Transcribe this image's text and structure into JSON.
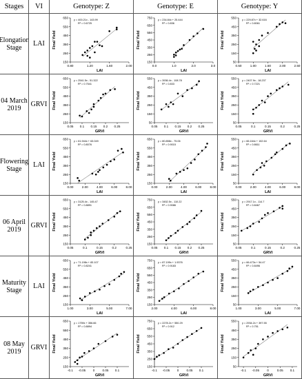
{
  "table": {
    "header": [
      "Stages",
      "VI",
      "Genotype: Z",
      "Genotype: E",
      "Genotype: Y"
    ],
    "rows": [
      [
        "Elongation Stage",
        "LAI"
      ],
      [
        "04 March 2019",
        "GRVI"
      ],
      [
        "Flowering Stage",
        "LAI"
      ],
      [
        "06 April 2019",
        "GRVI"
      ],
      [
        "Maturity Stage",
        "LAI"
      ],
      [
        "08 May 2019",
        "GRVI"
      ]
    ]
  },
  "chart_data": [
    {
      "type": "scatter",
      "equation": "y = 400.21x - 143.99",
      "r_squared": "R² = 0.6725",
      "x_label": "LAI",
      "y_label": "Final Yield",
      "color": "#000000",
      "trendline_color": "#808080",
      "xlim": [
        0.8,
        2.0
      ],
      "xticks": [
        {
          "value": 0.8,
          "label": "0.80"
        },
        {
          "value": 1.2,
          "label": "1.20"
        },
        {
          "value": 1.6,
          "label": "1.60"
        },
        {
          "value": 2,
          "label": "2.00"
        }
      ],
      "ylim": [
        150,
        650
      ],
      "yticks": [
        150,
        250,
        350,
        450,
        550,
        650
      ],
      "x": [
        1.05,
        1.1,
        1.15,
        1.15,
        1.2,
        1.25,
        1.3,
        1.35,
        1.4,
        1.3,
        1.6,
        1.75,
        1.75,
        1.2,
        1.45
      ],
      "values": [
        230,
        260,
        280,
        220,
        310,
        330,
        380,
        380,
        340,
        260,
        500,
        520,
        540,
        200,
        330
      ]
    },
    {
      "type": "scatter",
      "equation": "y = 234.84x + 25.444",
      "r_squared": "R² = 0.836",
      "x_label": "LAI",
      "y_label": "Final Yield",
      "color": "#000000",
      "trendline_color": "#808080",
      "xlim": [
        0,
        3
      ],
      "xticks": [
        {
          "value": 0,
          "label": "0.0"
        },
        {
          "value": 1,
          "label": "1.0"
        },
        {
          "value": 2,
          "label": "2.0"
        },
        {
          "value": 3,
          "label": "3.0"
        }
      ],
      "ylim": [
        150,
        750
      ],
      "yticks": [
        150,
        250,
        350,
        450,
        550,
        650,
        750
      ],
      "x": [
        1,
        1.1,
        1.2,
        1.0,
        1.3,
        1.5,
        1.8,
        2.0,
        2.2,
        2.5,
        1.1,
        1.4
      ],
      "values": [
        250,
        280,
        300,
        220,
        320,
        380,
        450,
        500,
        540,
        600,
        240,
        330
      ]
    },
    {
      "type": "scatter",
      "equation": "y = 229.87x + 32.616",
      "r_squared": "R² = 0.8061",
      "x_label": "LAI",
      "y_label": "Final Yield",
      "color": "#000000",
      "trendline_color": "#808080",
      "xlim": [
        0.5,
        2.5
      ],
      "xticks": [
        {
          "value": 0.5,
          "label": "0.50"
        },
        {
          "value": 1,
          "label": "1.00"
        },
        {
          "value": 1.5,
          "label": "1.50"
        },
        {
          "value": 2,
          "label": "2.00"
        },
        {
          "value": 2.5,
          "label": "2.50"
        }
      ],
      "ylim": [
        50,
        550
      ],
      "yticks": [
        50,
        150,
        250,
        350,
        450,
        550
      ],
      "x": [
        1.0,
        1.05,
        1.1,
        1.0,
        1.2,
        1.3,
        1.5,
        1.1,
        1.8,
        1.9,
        2.0,
        2.1,
        1.2
      ],
      "values": [
        150,
        200,
        250,
        280,
        300,
        350,
        380,
        180,
        450,
        480,
        500,
        490,
        230
      ]
    },
    {
      "type": "scatter",
      "equation": "y = 2541.5x - 51.322",
      "r_squared": "R² = 0.7541",
      "x_label": "GRVI",
      "y_label": "Final Yield",
      "color": "#000000",
      "trendline_color": "#808080",
      "xlim": [
        0.05,
        0.3
      ],
      "xticks": [
        0.05,
        0.1,
        0.15,
        0.2,
        0.25
      ],
      "ylim": [
        150,
        650
      ],
      "yticks": [
        150,
        250,
        350,
        450,
        550,
        650
      ],
      "x": [
        0.09,
        0.1,
        0.12,
        0.14,
        0.15,
        0.15,
        0.17,
        0.18,
        0.19,
        0.2,
        0.22,
        0.24,
        0.13
      ],
      "values": [
        230,
        220,
        280,
        300,
        360,
        330,
        400,
        430,
        470,
        480,
        520,
        530,
        260
      ]
    },
    {
      "type": "scatter",
      "equation": "y = 3936.4x - 108.78",
      "r_squared": "R² = 0.833",
      "x_label": "GRVI",
      "y_label": "Final Yield",
      "color": "#000000",
      "trendline_color": "#808080",
      "xlim": [
        0.05,
        0.3
      ],
      "xticks": [
        0.05,
        0.1,
        0.15,
        0.2,
        0.25
      ],
      "ylim": [
        50,
        550
      ],
      "yticks": [
        50,
        150,
        250,
        350,
        450,
        550
      ],
      "x": [
        0.08,
        0.1,
        0.12,
        0.13,
        0.15,
        0.17,
        0.19,
        0.21,
        0.23,
        0.24,
        0.11
      ],
      "values": [
        200,
        260,
        280,
        260,
        380,
        350,
        420,
        440,
        480,
        520,
        230
      ]
    },
    {
      "type": "scatter",
      "equation": "y = 2407.9x - 18.237",
      "r_squared": "R² = 0.7221",
      "x_label": "GRVI",
      "y_label": "Final Yield",
      "color": "#000000",
      "trendline_color": "#808080",
      "xlim": [
        0.05,
        0.25
      ],
      "xticks": [
        0.05,
        0.1,
        0.15,
        0.2,
        0.25
      ],
      "ylim": [
        50,
        550
      ],
      "yticks": [
        50,
        150,
        250,
        350,
        450,
        550
      ],
      "x": [
        0.1,
        0.1,
        0.12,
        0.13,
        0.14,
        0.15,
        0.16,
        0.18,
        0.19,
        0.2,
        0.22,
        0.11
      ],
      "values": [
        150,
        200,
        250,
        300,
        280,
        350,
        380,
        420,
        440,
        460,
        480,
        220
      ]
    },
    {
      "type": "scatter",
      "equation": "y = 61.944x + 63.049",
      "r_squared": "R² = 0.8076",
      "x_label": "LAI",
      "y_label": "Final Yield",
      "color": "#000000",
      "trendline_color": "#808080",
      "xlim": [
        0,
        8
      ],
      "xticks": [
        {
          "value": 0,
          "label": "0.00"
        },
        {
          "value": 2,
          "label": "2.00"
        },
        {
          "value": 4,
          "label": "4.00"
        },
        {
          "value": 6,
          "label": "6.00"
        },
        {
          "value": 8,
          "label": "8.00"
        }
      ],
      "ylim": [
        150,
        650
      ],
      "yticks": [
        150,
        250,
        350,
        450,
        550,
        650
      ],
      "x": [
        1,
        1.2,
        3,
        3.5,
        4,
        4.5,
        5,
        5.5,
        6,
        6.5,
        7,
        7.2,
        3.8
      ],
      "values": [
        210,
        180,
        260,
        250,
        300,
        330,
        360,
        400,
        420,
        520,
        540,
        500,
        280
      ]
    },
    {
      "type": "scatter",
      "equation": "y = 80.858x - 75.06",
      "r_squared": "R² = 0.9015",
      "x_label": "LAI",
      "y_label": "Final Yield",
      "color": "#000000",
      "trendline_color": "#808080",
      "xlim": [
        0,
        8
      ],
      "xticks": [
        {
          "value": 0,
          "label": "0.00"
        },
        {
          "value": 2,
          "label": "2.00"
        },
        {
          "value": 4,
          "label": "4.00"
        },
        {
          "value": 6,
          "label": "6.00"
        },
        {
          "value": 8,
          "label": "8.00"
        }
      ],
      "ylim": [
        150,
        650
      ],
      "yticks": [
        150,
        250,
        350,
        450,
        550,
        650
      ],
      "x": [
        2,
        2.2,
        3,
        3.5,
        4,
        4.5,
        5,
        5.5,
        6,
        6.5,
        7,
        7.2
      ],
      "values": [
        200,
        180,
        260,
        280,
        300,
        320,
        380,
        420,
        480,
        520,
        560,
        600
      ]
    },
    {
      "type": "scatter",
      "equation": "y = 66.164x + 102.64",
      "r_squared": "R² = 0.8611",
      "x_label": "LAI",
      "y_label": "Final Yield",
      "color": "#000000",
      "trendline_color": "#808080",
      "xlim": [
        0,
        8
      ],
      "xticks": [
        {
          "value": 0,
          "label": "0.00"
        },
        {
          "value": 2,
          "label": "2.00"
        },
        {
          "value": 4,
          "label": "4.00"
        },
        {
          "value": 6,
          "label": "6.00"
        },
        {
          "value": 8,
          "label": "8.00"
        }
      ],
      "ylim": [
        50,
        550
      ],
      "yticks": [
        50,
        150,
        250,
        350,
        450,
        550
      ],
      "x": [
        2,
        2.5,
        3,
        3.2,
        3.8,
        4.5,
        5,
        5.2,
        6,
        6.5,
        7,
        3.5
      ],
      "values": [
        150,
        200,
        230,
        280,
        300,
        340,
        380,
        400,
        440,
        480,
        500,
        250
      ]
    },
    {
      "type": "scatter",
      "equation": "y = 3125.4x - 145.47",
      "r_squared": "R² = 0.8891",
      "x_label": "GRVI",
      "y_label": "Final Yield",
      "color": "#000000",
      "trendline_color": "#808080",
      "xlim": [
        0.05,
        0.25
      ],
      "xticks": [
        0.05,
        0.1,
        0.15,
        0.2,
        0.25
      ],
      "ylim": [
        150,
        650
      ],
      "yticks": [
        150,
        250,
        350,
        450,
        550,
        650
      ],
      "x": [
        0.1,
        0.11,
        0.12,
        0.13,
        0.14,
        0.15,
        0.16,
        0.18,
        0.2,
        0.21,
        0.22,
        0.12
      ],
      "values": [
        200,
        220,
        280,
        300,
        330,
        350,
        380,
        420,
        460,
        500,
        520,
        250
      ]
    },
    {
      "type": "scatter",
      "equation": "y = 3452.5x - 110.22",
      "r_squared": "R² = 0.9086",
      "x_label": "GRVI",
      "y_label": "Final Yield",
      "color": "#000000",
      "trendline_color": "#808080",
      "xlim": [
        0.05,
        0.3
      ],
      "xticks": [
        0.05,
        0.1,
        0.15,
        0.2,
        0.25
      ],
      "ylim": [
        150,
        750
      ],
      "yticks": [
        150,
        250,
        350,
        450,
        550,
        650,
        750
      ],
      "x": [
        0.1,
        0.11,
        0.12,
        0.14,
        0.15,
        0.17,
        0.19,
        0.2,
        0.22,
        0.23,
        0.25
      ],
      "values": [
        200,
        230,
        260,
        300,
        330,
        380,
        420,
        450,
        500,
        540,
        600
      ]
    },
    {
      "type": "scatter",
      "equation": "y = 2917.1x - 114.7",
      "r_squared": "R² = 0.8467",
      "x_label": "GRVI",
      "y_label": "Final Yield",
      "color": "#000000",
      "trendline_color": "#808080",
      "xlim": [
        0.05,
        0.25
      ],
      "xticks": [
        0.05,
        0.1,
        0.15,
        0.2,
        0.25
      ],
      "ylim": [
        50,
        550
      ],
      "yticks": [
        50,
        150,
        250,
        350,
        450,
        550
      ],
      "x": [
        0.06,
        0.08,
        0.09,
        0.1,
        0.12,
        0.13,
        0.14,
        0.15,
        0.17,
        0.19,
        0.2,
        0.2
      ],
      "values": [
        200,
        230,
        250,
        280,
        300,
        340,
        380,
        400,
        420,
        460,
        480,
        450
      ]
    },
    {
      "type": "scatter",
      "equation": "y = 71.198x + 83.107",
      "r_squared": "R² = 0.8241",
      "x_label": "LAI",
      "y_label": "Final Yield",
      "color": "#000000",
      "trendline_color": "#808080",
      "xlim": [
        1,
        7
      ],
      "xticks": [
        {
          "value": 1,
          "label": "1.00"
        },
        {
          "value": 3,
          "label": "3.00"
        },
        {
          "value": 5,
          "label": "5.00"
        },
        {
          "value": 7,
          "label": "7.00"
        }
      ],
      "ylim": [
        150,
        650
      ],
      "yticks": [
        150,
        250,
        350,
        450,
        550,
        650
      ],
      "x": [
        2,
        2.5,
        3,
        3.5,
        4,
        4.5,
        5,
        5.5,
        6,
        6.2,
        6.5,
        2.2
      ],
      "values": [
        220,
        240,
        280,
        300,
        320,
        360,
        380,
        430,
        470,
        500,
        520,
        200
      ]
    },
    {
      "type": "scatter",
      "equation": "y = 87.199x + 1.9376",
      "r_squared": "R² = 0.9183",
      "x_label": "LAI",
      "y_label": "Final Yield",
      "color": "#000000",
      "trendline_color": "#808080",
      "xlim": [
        2,
        8
      ],
      "xticks": [
        {
          "value": 2,
          "label": "2.00"
        },
        {
          "value": 4,
          "label": "4.00"
        },
        {
          "value": 6,
          "label": "6.00"
        },
        {
          "value": 8,
          "label": "8.00"
        }
      ],
      "ylim": [
        150,
        750
      ],
      "yticks": [
        150,
        250,
        350,
        450,
        550,
        650,
        750
      ],
      "x": [
        2.5,
        3,
        3.5,
        4,
        4.5,
        5,
        5.5,
        6,
        6.5,
        7,
        2.8
      ],
      "values": [
        200,
        250,
        300,
        330,
        370,
        430,
        470,
        520,
        570,
        600,
        230
      ]
    },
    {
      "type": "scatter",
      "equation": "y = 66.473x + 54.47",
      "r_squared": "R² = 0.8496",
      "x_label": "LAI",
      "y_label": "Final Yield",
      "color": "#000000",
      "trendline_color": "#808080",
      "xlim": [
        1,
        7
      ],
      "xticks": [
        {
          "value": 1,
          "label": "1.00"
        },
        {
          "value": 3,
          "label": "3.00"
        },
        {
          "value": 5,
          "label": "5.00"
        },
        {
          "value": 7,
          "label": "7.00"
        }
      ],
      "ylim": [
        50,
        550
      ],
      "yticks": [
        50,
        150,
        250,
        350,
        450,
        550
      ],
      "x": [
        2,
        2.5,
        3,
        3.5,
        4,
        4.5,
        5,
        5.5,
        6,
        6.2,
        6.5,
        2.2
      ],
      "values": [
        180,
        220,
        250,
        270,
        300,
        330,
        350,
        400,
        430,
        460,
        480,
        200
      ]
    },
    {
      "type": "scatter",
      "equation": "y = 1759x + 356.66",
      "r_squared": "R² = 0.8894",
      "x_label": "GRVI",
      "y_label": "Final Yield",
      "color": "#000000",
      "trendline_color": "#808080",
      "xlim": [
        -0.1,
        0.15
      ],
      "xticks": [
        -0.1,
        -0.05,
        0,
        0.05,
        0.1
      ],
      "ylim": [
        150,
        650
      ],
      "yticks": [
        150,
        250,
        350,
        450,
        550,
        650
      ],
      "x": [
        -0.08,
        -0.07,
        -0.06,
        -0.05,
        -0.04,
        -0.02,
        0,
        0.02,
        0.05,
        0.08,
        0.1,
        -0.07
      ],
      "values": [
        200,
        220,
        250,
        260,
        300,
        320,
        350,
        400,
        430,
        480,
        500,
        180
      ]
    },
    {
      "type": "scatter",
      "equation": "y = 2278.2x + 550.29",
      "r_squared": "R² = 0.912",
      "x_label": "GRVI",
      "y_label": "Final Yield",
      "color": "#000000",
      "trendline_color": "#808080",
      "xlim": [
        -0.1,
        0.15
      ],
      "xticks": [
        -0.1,
        -0.05,
        0,
        0.05,
        0.1
      ],
      "ylim": [
        150,
        750
      ],
      "yticks": [
        150,
        250,
        350,
        450,
        550,
        650,
        750
      ],
      "x": [
        -0.1,
        -0.08,
        -0.06,
        -0.04,
        -0.02,
        0,
        0.02,
        0.04,
        0.06,
        0.08,
        0.1,
        -0.09
      ],
      "values": [
        250,
        300,
        330,
        380,
        400,
        450,
        500,
        540,
        580,
        620,
        660,
        280
      ]
    },
    {
      "type": "scatter",
      "equation": "y = 2934.2x + 397.55",
      "r_squared": "R² = 0.751",
      "x_label": "GRVI",
      "y_label": "Final Yield",
      "color": "#000000",
      "trendline_color": "#808080",
      "xlim": [
        -0.12,
        0.12
      ],
      "xticks": [
        -0.1,
        -0.05,
        0,
        0.05,
        0.1
      ],
      "ylim": [
        50,
        550
      ],
      "yticks": [
        50,
        150,
        250,
        350,
        450,
        550
      ],
      "x": [
        -0.1,
        -0.08,
        -0.07,
        -0.05,
        -0.04,
        -0.02,
        0,
        0.02,
        0.04,
        0.06,
        0.08,
        -0.06
      ],
      "values": [
        150,
        200,
        230,
        250,
        300,
        350,
        380,
        420,
        440,
        460,
        480,
        180
      ]
    }
  ]
}
